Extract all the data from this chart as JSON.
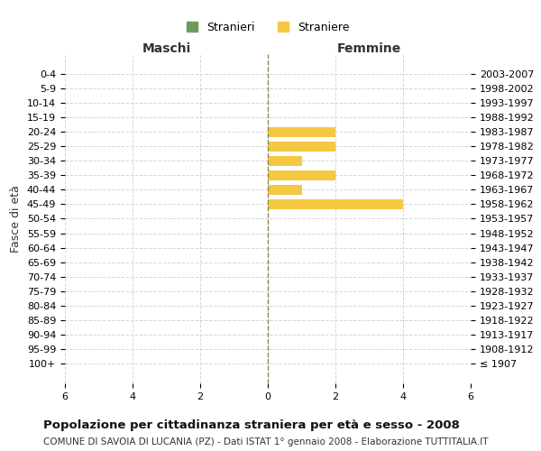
{
  "age_groups": [
    "100+",
    "95-99",
    "90-94",
    "85-89",
    "80-84",
    "75-79",
    "70-74",
    "65-69",
    "60-64",
    "55-59",
    "50-54",
    "45-49",
    "40-44",
    "35-39",
    "30-34",
    "25-29",
    "20-24",
    "15-19",
    "10-14",
    "5-9",
    "0-4"
  ],
  "birth_years": [
    "≤ 1907",
    "1908-1912",
    "1913-1917",
    "1918-1922",
    "1923-1927",
    "1928-1932",
    "1933-1937",
    "1938-1942",
    "1943-1947",
    "1948-1952",
    "1953-1957",
    "1958-1962",
    "1963-1967",
    "1968-1972",
    "1973-1977",
    "1978-1982",
    "1983-1987",
    "1988-1992",
    "1993-1997",
    "1998-2002",
    "2003-2007"
  ],
  "male_stranieri": [
    0,
    0,
    0,
    0,
    0,
    0,
    0,
    0,
    0,
    0,
    0,
    0,
    0,
    0,
    0,
    0,
    0,
    0,
    0,
    0,
    0
  ],
  "female_straniere": [
    0,
    0,
    0,
    0,
    0,
    0,
    0,
    0,
    0,
    0,
    0,
    4,
    1,
    2,
    1,
    2,
    2,
    0,
    0,
    0,
    0
  ],
  "male_color": "#6a9e5a",
  "female_color": "#f5c842",
  "bar_alpha": 1.0,
  "title": "Popolazione per cittadinanza straniera per età e sesso - 2008",
  "subtitle": "COMUNE DI SAVOIA DI LUCANIA (PZ) - Dati ISTAT 1° gennaio 2008 - Elaborazione TUTTITALIA.IT",
  "xlabel_left": "Maschi",
  "xlabel_right": "Femmine",
  "ylabel_left": "Fasce di età",
  "legend_stranieri": "Stranieri",
  "legend_straniere": "Straniere",
  "xlim": 6,
  "background_color": "#ffffff",
  "grid_color": "#cccccc",
  "axis_line_color": "#888888"
}
